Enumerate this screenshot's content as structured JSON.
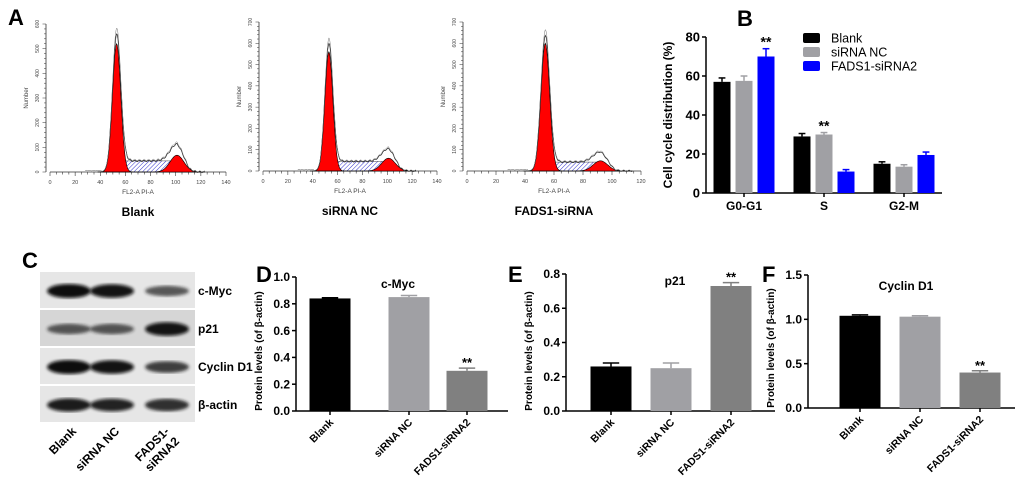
{
  "panel_labels": {
    "A": "A",
    "B": "B",
    "C": "C",
    "D": "D",
    "E": "E",
    "F": "F"
  },
  "colors": {
    "black": "#000000",
    "gray": "#a0a0a4",
    "blue": "#0000ff",
    "darkgray": "#808080",
    "red": "#ff0000",
    "hatch": "#3333cc"
  },
  "chart_data": [
    {
      "id": "A1",
      "type": "area",
      "title": "Blank",
      "xlabel": "FL2-A PI-A",
      "ylabel": "Number",
      "xlim": [
        0,
        140
      ],
      "xticks": [
        0,
        20,
        40,
        60,
        80,
        100,
        120,
        140
      ],
      "ylim": [
        0,
        600
      ],
      "yticks": [
        0,
        100,
        200,
        300,
        400,
        500,
        600
      ],
      "g1_peak": {
        "mean": 53,
        "sd": 3.3,
        "height": 520
      },
      "s_phase_level": 45,
      "g2_peak": {
        "mean": 101,
        "sd": 5.5,
        "height": 68
      },
      "total_max": 590
    },
    {
      "id": "A2",
      "type": "area",
      "title": "siRNA NC",
      "xlabel": "FL2-A PI-A",
      "ylabel": "Number",
      "xlim": [
        0,
        140
      ],
      "xticks": [
        0,
        20,
        40,
        60,
        80,
        100,
        120,
        140
      ],
      "ylim": [
        0,
        700
      ],
      "yticks": [
        0,
        100,
        200,
        300,
        400,
        500,
        600,
        700
      ],
      "g1_peak": {
        "mean": 53,
        "sd": 3.2,
        "height": 560
      },
      "s_phase_level": 45,
      "g2_peak": {
        "mean": 101,
        "sd": 5.5,
        "height": 60
      },
      "total_max": 610
    },
    {
      "id": "A3",
      "type": "area",
      "title": "FADS1-siRNA",
      "xlabel": "FL2-A PI-A",
      "ylabel": "Number",
      "xlim": [
        0,
        120
      ],
      "xticks": [
        0,
        20,
        40,
        60,
        80,
        100,
        120
      ],
      "ylim": [
        0,
        700
      ],
      "yticks": [
        0,
        100,
        200,
        300,
        400,
        500,
        600,
        700
      ],
      "g1_peak": {
        "mean": 54,
        "sd": 3.0,
        "height": 600
      },
      "s_phase_level": 42,
      "g2_peak": {
        "mean": 92,
        "sd": 5,
        "height": 48
      },
      "total_max": 625
    },
    {
      "id": "B",
      "type": "bar",
      "title": "",
      "xlabel": "",
      "ylabel": "Cell cycle distribution (%)",
      "ylim": [
        0,
        80
      ],
      "yticks": [
        0,
        20,
        40,
        60,
        80
      ],
      "categories": [
        "G0-G1",
        "S",
        "G2-M"
      ],
      "series": [
        {
          "name": "Blank",
          "color": "#000000",
          "values": [
            57,
            29,
            15
          ],
          "errors": [
            2,
            1.5,
            1
          ]
        },
        {
          "name": "siRNA NC",
          "color": "#a0a0a4",
          "values": [
            57.5,
            30,
            13.5
          ],
          "errors": [
            2.5,
            1,
            1
          ]
        },
        {
          "name": "FADS1-siRNA2",
          "color": "#0000ff",
          "values": [
            70,
            11,
            19.5
          ],
          "errors": [
            4,
            1,
            1.5
          ]
        }
      ],
      "annotations": [
        {
          "category": "G0-G1",
          "series": "FADS1-siRNA2",
          "text": "**"
        },
        {
          "category": "S",
          "series": "siRNA NC",
          "text": "**"
        }
      ],
      "legend": "top-right"
    },
    {
      "id": "D",
      "type": "bar",
      "title": "c-Myc",
      "ylabel": "Protein levels (of β-actin)",
      "ylim": [
        0,
        1.0
      ],
      "yticks": [
        "0.0",
        "0.2",
        "0.4",
        "0.6",
        "0.8",
        "1.0"
      ],
      "categories": [
        "Blank",
        "siRNA NC",
        "FADS1-siRNA2"
      ],
      "values": [
        0.84,
        0.85,
        0.3
      ],
      "errors": [
        0.005,
        0.012,
        0.02
      ],
      "colors": [
        "#000000",
        "#a0a0a4",
        "#808080"
      ],
      "annotations": [
        {
          "category": "FADS1-siRNA2",
          "text": "**"
        }
      ]
    },
    {
      "id": "E",
      "type": "bar",
      "title": "p21",
      "ylabel": "Protein levels (of β-actin)",
      "ylim": [
        0,
        0.8
      ],
      "yticks": [
        "0.0",
        "0.2",
        "0.4",
        "0.6",
        "0.8"
      ],
      "categories": [
        "Blank",
        "siRNA NC",
        "FADS1-siRNA2"
      ],
      "values": [
        0.26,
        0.25,
        0.73
      ],
      "errors": [
        0.02,
        0.03,
        0.02
      ],
      "colors": [
        "#000000",
        "#a0a0a4",
        "#808080"
      ],
      "annotations": [
        {
          "category": "FADS1-siRNA2",
          "text": "**"
        }
      ]
    },
    {
      "id": "F",
      "type": "bar",
      "title": "Cyclin D1",
      "ylabel": "Protein levels (of β-actin)",
      "ylim": [
        0,
        1.5
      ],
      "yticks": [
        "0.0",
        "0.5",
        "1.0",
        "1.5"
      ],
      "categories": [
        "Blank",
        "siRNA NC",
        "FADS1-siRNA2"
      ],
      "values": [
        1.04,
        1.03,
        0.4
      ],
      "errors": [
        0.01,
        0.01,
        0.02
      ],
      "colors": [
        "#000000",
        "#a0a0a4",
        "#808080"
      ],
      "annotations": [
        {
          "category": "FADS1-siRNA2",
          "text": "**"
        }
      ]
    }
  ],
  "western_blot": {
    "proteins": [
      {
        "name": "c-Myc",
        "band_intensity": [
          1.0,
          0.95,
          0.55
        ]
      },
      {
        "name": "p21",
        "band_intensity": [
          0.55,
          0.55,
          0.95
        ]
      },
      {
        "name": "Cyclin D1",
        "band_intensity": [
          1.0,
          0.95,
          0.7
        ]
      },
      {
        "name": "β-actin",
        "band_intensity": [
          0.9,
          0.85,
          0.8
        ]
      }
    ],
    "lanes": [
      "Blank",
      "siRNA NC",
      "FADS1-\nsiRNA2"
    ]
  }
}
